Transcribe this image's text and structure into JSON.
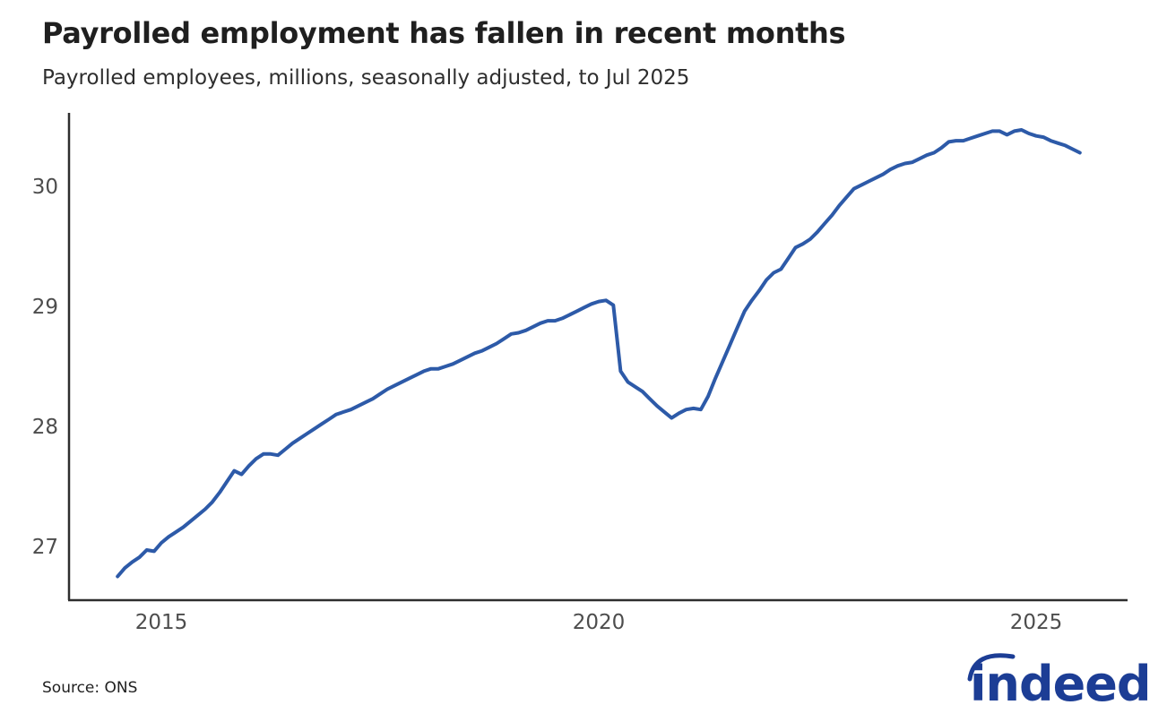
{
  "header": {
    "title": "Payrolled employment has fallen in recent months",
    "subtitle": "Payrolled employees, millions, seasonally adjusted, to Jul 2025"
  },
  "footer": {
    "source": "Source: ONS",
    "logo_text": "indeed"
  },
  "colors": {
    "line": "#2d5aa8",
    "axis": "#2e2e2e",
    "tick_label": "#4d4d4d",
    "title_text": "#1f1f1f",
    "logo_navy": "#1c3d95"
  },
  "chart_data": {
    "type": "line",
    "title": "Payrolled employment has fallen in recent months",
    "subtitle": "Payrolled employees, millions, seasonally adjusted, to Jul 2025",
    "xlabel": "",
    "ylabel": "Payrolled employees, millions",
    "grid": false,
    "legend_position": "none",
    "x_axis": {
      "ticks": [
        2015,
        2020,
        2025
      ],
      "tick_labels": [
        "2015",
        "2020",
        "2025"
      ],
      "range_years": [
        2013.94,
        2026.05
      ]
    },
    "y_axis": {
      "ticks": [
        27,
        28,
        29,
        30
      ],
      "tick_labels": [
        "27",
        "28",
        "29",
        "30"
      ],
      "range": [
        26.55,
        30.6
      ]
    },
    "series": [
      {
        "name": "Payrolled employees, millions, seasonally adjusted",
        "frequency": "monthly",
        "start": "2014-07",
        "end": "2025-07",
        "start_year_fraction": 2014.5,
        "values": [
          26.75,
          26.82,
          26.87,
          26.91,
          26.97,
          26.96,
          27.03,
          27.08,
          27.12,
          27.16,
          27.21,
          27.26,
          27.31,
          27.37,
          27.45,
          27.54,
          27.63,
          27.6,
          27.67,
          27.73,
          27.77,
          27.77,
          27.76,
          27.81,
          27.86,
          27.9,
          27.94,
          27.98,
          28.02,
          28.06,
          28.1,
          28.12,
          28.14,
          28.17,
          28.2,
          28.23,
          28.27,
          28.31,
          28.34,
          28.37,
          28.4,
          28.43,
          28.46,
          28.48,
          28.48,
          28.5,
          28.52,
          28.55,
          28.58,
          28.61,
          28.63,
          28.66,
          28.69,
          28.73,
          28.77,
          28.78,
          28.8,
          28.83,
          28.86,
          28.88,
          28.88,
          28.9,
          28.93,
          28.96,
          28.99,
          29.02,
          29.04,
          29.05,
          29.01,
          28.46,
          28.37,
          28.33,
          28.29,
          28.23,
          28.17,
          28.12,
          28.07,
          28.11,
          28.14,
          28.15,
          28.14,
          28.25,
          28.4,
          28.54,
          28.68,
          28.82,
          28.96,
          29.05,
          29.13,
          29.22,
          29.28,
          29.31,
          29.4,
          29.49,
          29.52,
          29.56,
          29.62,
          29.69,
          29.76,
          29.84,
          29.91,
          29.98,
          30.01,
          30.04,
          30.07,
          30.1,
          30.14,
          30.17,
          30.19,
          30.2,
          30.23,
          30.26,
          30.28,
          30.32,
          30.37,
          30.38,
          30.38,
          30.4,
          30.42,
          30.44,
          30.46,
          30.46,
          30.43,
          30.46,
          30.47,
          30.44,
          30.42,
          30.41,
          30.38,
          30.36,
          30.34,
          30.31,
          30.28
        ]
      }
    ]
  }
}
